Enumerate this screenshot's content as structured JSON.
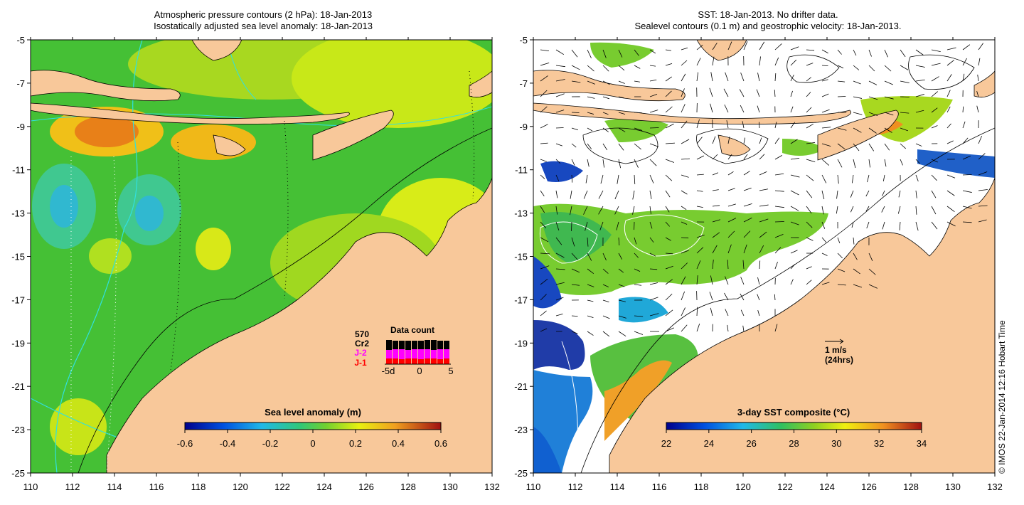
{
  "left_panel": {
    "title_line1": "Atmospheric pressure contours (2 hPa): 18-Jan-2013",
    "title_line2": "Isostatically adjusted sea level anomaly: 18-Jan-2013",
    "x_ticks": [
      "110",
      "112",
      "114",
      "116",
      "118",
      "120",
      "122",
      "124",
      "126",
      "128",
      "130",
      "132"
    ],
    "y_ticks": [
      "-5",
      "-7",
      "-9",
      "-11",
      "-13",
      "-15",
      "-17",
      "-19",
      "-21",
      "-23",
      "-25"
    ],
    "colorbar": {
      "title": "Sea level anomaly (m)",
      "ticks": [
        "-0.6",
        "-0.4",
        "-0.2",
        "0",
        "0.2",
        "0.4",
        "0.6"
      ]
    },
    "data_count": {
      "title": "Data count",
      "max_label": "570",
      "satellites": [
        "Cr2",
        "J-2",
        "J-1"
      ],
      "satellite_colors": [
        "#000000",
        "#ff00ff",
        "#ff0000"
      ],
      "x_labels": [
        "-5d",
        "0",
        "5"
      ]
    }
  },
  "right_panel": {
    "title_line1": "SST: 18-Jan-2013. No drifter data.",
    "title_line2": "Sealevel contours (0.1 m) and geostrophic velocity: 18-Jan-2013.",
    "x_ticks": [
      "110",
      "112",
      "114",
      "116",
      "118",
      "120",
      "122",
      "124",
      "126",
      "128",
      "130",
      "132"
    ],
    "y_ticks": [
      "-5",
      "-7",
      "-9",
      "-11",
      "-13",
      "-15",
      "-17",
      "-19",
      "-21",
      "-23",
      "-25"
    ],
    "colorbar": {
      "title": "3-day SST composite (°C)",
      "ticks": [
        "22",
        "24",
        "26",
        "28",
        "30",
        "32",
        "34"
      ]
    },
    "velocity_legend": {
      "label": "1 m/s",
      "sublabel": "(24hrs)"
    }
  },
  "credit": "© IMOS 22-Jan-2014 12:16 Hobart Time",
  "colors": {
    "land": "#f8c89a",
    "ocean_green": "#3fbf30",
    "ocean_lightgreen": "#8fd020",
    "ocean_yellow": "#e5ec10",
    "ocean_cyan": "#30c8c8",
    "ocean_orange": "#f0a020",
    "contour_cyan": "#30e0e0"
  }
}
